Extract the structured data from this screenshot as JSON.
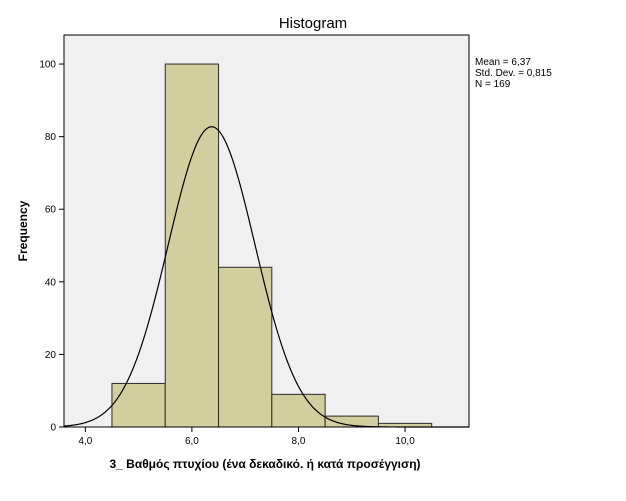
{
  "chart_data": {
    "type": "bar",
    "title": "Histogram",
    "xlabel": "3_ Βαθμός πτυχίου  (ένα δεκαδικό. ή κατά προσέγγιση)",
    "ylabel": "Frequency",
    "bins": [
      {
        "start": 4.5,
        "end": 5.5,
        "value": 12
      },
      {
        "start": 5.5,
        "end": 6.5,
        "value": 100
      },
      {
        "start": 6.5,
        "end": 7.5,
        "value": 44
      },
      {
        "start": 7.5,
        "end": 8.5,
        "value": 9
      },
      {
        "start": 8.5,
        "end": 9.5,
        "value": 3
      },
      {
        "start": 9.5,
        "end": 10.5,
        "value": 1
      }
    ],
    "xlim": [
      3.6,
      11.2
    ],
    "ylim": [
      0,
      108
    ],
    "x_ticks": [
      4.0,
      6.0,
      8.0,
      10.0
    ],
    "x_tick_labels": [
      "4,0",
      "6,0",
      "8,0",
      "10,0"
    ],
    "y_ticks": [
      0,
      20,
      40,
      60,
      80,
      100
    ],
    "y_tick_labels": [
      "0",
      "20",
      "40",
      "60",
      "80",
      "100"
    ],
    "normal_curve": {
      "mean": 6.37,
      "sd": 0.815,
      "n": 169,
      "bin_width": 1.0
    },
    "stats": [
      "Mean = 6,37",
      "Std. Dev. = 0,815",
      "N = 169"
    ],
    "grid": false,
    "legend_position": "right",
    "colors": {
      "bar_fill": "#d3ce9e",
      "bar_stroke": "#2b2b2b",
      "plot_bg": "#f0f0f0",
      "curve": "#000000"
    }
  }
}
